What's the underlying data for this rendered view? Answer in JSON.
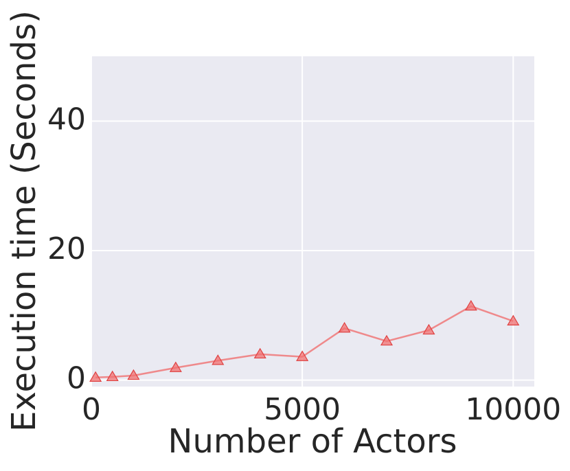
{
  "chart_data": {
    "type": "line",
    "x_label": "Number of Actors",
    "y_label": "Execution time (Seconds)",
    "x": [
      100,
      500,
      1000,
      2000,
      3000,
      4000,
      5000,
      6000,
      7000,
      8000,
      9000,
      10000
    ],
    "series": [
      {
        "color": "#f07070",
        "values": [
          0.4,
          0.5,
          0.7,
          1.9,
          3.0,
          4.0,
          3.6,
          8.0,
          6.0,
          7.7,
          11.4,
          9.1
        ]
      }
    ],
    "xlim": [
      0,
      10500
    ],
    "ylim": [
      -1,
      50
    ],
    "xticks": [
      0,
      5000,
      10000
    ],
    "yticks": [
      0,
      20,
      40
    ],
    "grid": true,
    "marker": "triangle"
  }
}
